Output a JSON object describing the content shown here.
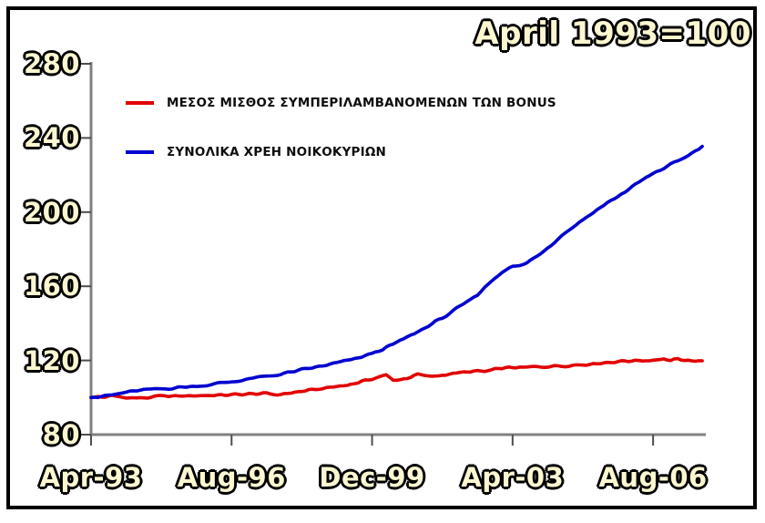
{
  "title": "April 1993=100",
  "legend": [
    {
      "label": "ΜΕΣΟΣ ΜΙΣΘΟΣ ΣΥΜΠΕΡΙΛΑΜΒΑΝΟΜΕΝΩΝ ΤΩΝ BONUS",
      "color": "#e10000"
    },
    {
      "label": "ΣΥΝΟΛΙΚΑ ΧΡΕΗ ΝΟΙΚΟΚΥΡΙΩΝ",
      "color": "#0000d0"
    }
  ],
  "colors": {
    "salary_series": "#e10000",
    "debt_series": "#0000d0",
    "axis": "#808080",
    "tick": "#4d4d4d",
    "label_fill": "#fbf7d0",
    "label_outline": "#000000",
    "frame": "#000000"
  },
  "chart_data": {
    "type": "line",
    "title": "April 1993=100",
    "xlabel": "",
    "ylabel": "",
    "x_unit": "months since Apr-1993 (monthly index series, Apr 1993 = 100)",
    "x_range": [
      0,
      174
    ],
    "ylim": [
      80,
      281
    ],
    "y_ticks": [
      80,
      120,
      160,
      200,
      240,
      280
    ],
    "x_tick_positions": [
      0,
      40,
      80,
      120,
      160
    ],
    "x_tick_labels": [
      "Apr-93",
      "Aug-96",
      "Dec-99",
      "Apr-03",
      "Aug-06"
    ],
    "grid": false,
    "legend_position": "inside top-left",
    "series": [
      {
        "name": "ΜΕΣΟΣ ΜΙΣΘΟΣ ΣΥΜΠΕΡΙΛΑΜΒΑΝΟΜΕΝΩΝ ΤΩΝ BONUS",
        "color": "#e10000",
        "points": [
          [
            0,
            100
          ],
          [
            2,
            100.4
          ],
          [
            4,
            100.2
          ],
          [
            6,
            100.9
          ],
          [
            8,
            100.4
          ],
          [
            11,
            99.9
          ],
          [
            13,
            99.7
          ],
          [
            16,
            99.9
          ],
          [
            19,
            100.5
          ],
          [
            22,
            100.7
          ],
          [
            26,
            100.8
          ],
          [
            30,
            101.1
          ],
          [
            34,
            101.2
          ],
          [
            38,
            101.3
          ],
          [
            41,
            101.5
          ],
          [
            44,
            101.8
          ],
          [
            47,
            102
          ],
          [
            50,
            102
          ],
          [
            53,
            101.6
          ],
          [
            56,
            102.3
          ],
          [
            60,
            103.3
          ],
          [
            64,
            104.3
          ],
          [
            68,
            105.4
          ],
          [
            72,
            106.6
          ],
          [
            76,
            108
          ],
          [
            79,
            109.6
          ],
          [
            82,
            111.2
          ],
          [
            84,
            111.9
          ],
          [
            86,
            109.4
          ],
          [
            88,
            109.8
          ],
          [
            91,
            111
          ],
          [
            93,
            112.4
          ],
          [
            95,
            111.6
          ],
          [
            97,
            111.3
          ],
          [
            100,
            112.2
          ],
          [
            103,
            113
          ],
          [
            106,
            113.4
          ],
          [
            109,
            114.2
          ],
          [
            112,
            113.9
          ],
          [
            115,
            115
          ],
          [
            118,
            115.9
          ],
          [
            120,
            116.2
          ],
          [
            123,
            116
          ],
          [
            126,
            116.5
          ],
          [
            129,
            116.8
          ],
          [
            132,
            117
          ],
          [
            136,
            117.4
          ],
          [
            140,
            117.9
          ],
          [
            144,
            118.5
          ],
          [
            148,
            119.2
          ],
          [
            152,
            119.7
          ],
          [
            156,
            120
          ],
          [
            159,
            120.2
          ],
          [
            161,
            120.6
          ],
          [
            163,
            120.9
          ],
          [
            165,
            119.9
          ],
          [
            167,
            120.6
          ],
          [
            169,
            119.6
          ],
          [
            171,
            120.2
          ],
          [
            174,
            119.8
          ]
        ]
      },
      {
        "name": "ΣΥΝΟΛΙΚΑ ΧΡΕΗ ΝΟΙΚΟΚΥΡΙΩΝ",
        "color": "#0000d0",
        "points": [
          [
            0,
            100
          ],
          [
            3,
            100.6
          ],
          [
            6,
            101.3
          ],
          [
            10,
            102.8
          ],
          [
            14,
            103.8
          ],
          [
            18,
            104.4
          ],
          [
            22,
            105
          ],
          [
            26,
            105.6
          ],
          [
            30,
            106.2
          ],
          [
            34,
            107
          ],
          [
            40,
            108.6
          ],
          [
            44,
            109.6
          ],
          [
            47,
            110.6
          ],
          [
            50,
            111.4
          ],
          [
            54,
            112.6
          ],
          [
            58,
            114
          ],
          [
            62,
            115.6
          ],
          [
            66,
            117
          ],
          [
            70,
            118.6
          ],
          [
            73,
            119.8
          ],
          [
            76,
            121.2
          ],
          [
            80,
            123.8
          ],
          [
            83,
            126
          ],
          [
            86,
            128.6
          ],
          [
            89,
            131.5
          ],
          [
            91,
            133.5
          ],
          [
            94,
            136.5
          ],
          [
            98,
            140.8
          ],
          [
            102,
            145.2
          ],
          [
            106,
            150
          ],
          [
            110,
            155.5
          ],
          [
            114,
            163
          ],
          [
            117,
            168
          ],
          [
            120,
            170.5
          ],
          [
            122,
            171
          ],
          [
            124,
            172.5
          ],
          [
            127,
            176.5
          ],
          [
            130,
            181
          ],
          [
            135,
            189
          ],
          [
            139,
            194.5
          ],
          [
            143,
            200
          ],
          [
            147,
            205
          ],
          [
            150,
            208.5
          ],
          [
            154,
            213.5
          ],
          [
            158,
            218.5
          ],
          [
            162,
            222.5
          ],
          [
            166,
            227
          ],
          [
            169,
            229.5
          ],
          [
            171,
            231.5
          ],
          [
            173,
            233.8
          ],
          [
            174,
            235.5
          ]
        ]
      }
    ]
  }
}
